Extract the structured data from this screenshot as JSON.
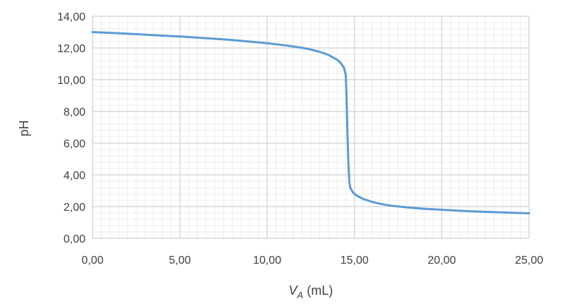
{
  "chart_data": {
    "type": "line",
    "title": "",
    "xlabel": {
      "main": "V",
      "sub": "A",
      "suffix": " (mL)"
    },
    "ylabel": "pH",
    "xlim": [
      0,
      25
    ],
    "ylim": [
      0,
      14
    ],
    "x_major_step": 5,
    "y_major_step": 2,
    "minor_grid": true,
    "major_grid": true,
    "legend": "none",
    "x_tick_labels": [
      "0,00",
      "5,00",
      "10,00",
      "15,00",
      "20,00",
      "25,00"
    ],
    "y_tick_labels": [
      "0,00",
      "2,00",
      "4,00",
      "6,00",
      "8,00",
      "10,00",
      "12,00",
      "14,00"
    ],
    "colors": {
      "line": "#5b9bd5",
      "major_grid": "#d9d9d9",
      "minor_grid": "#ececec",
      "text": "#404040"
    },
    "series": [
      {
        "x": [
          0,
          1,
          2,
          3,
          4,
          5,
          6,
          7,
          8,
          9,
          10,
          11,
          12,
          12.5,
          13,
          13.5,
          14,
          14.2,
          14.4,
          14.5,
          14.55,
          14.6,
          14.65,
          14.7,
          14.75,
          14.8,
          14.9,
          15,
          15.2,
          15.5,
          16,
          16.5,
          17,
          18,
          19,
          20,
          21,
          22,
          23,
          24,
          25
        ],
        "y": [
          13.0,
          12.95,
          12.9,
          12.84,
          12.78,
          12.72,
          12.65,
          12.58,
          12.5,
          12.4,
          12.3,
          12.17,
          12.01,
          11.9,
          11.76,
          11.57,
          11.26,
          11.07,
          10.74,
          10.3,
          8.8,
          6.5,
          4.8,
          3.6,
          3.25,
          3.1,
          2.92,
          2.8,
          2.65,
          2.48,
          2.3,
          2.17,
          2.07,
          1.95,
          1.86,
          1.8,
          1.74,
          1.69,
          1.65,
          1.61,
          1.58
        ]
      }
    ]
  }
}
